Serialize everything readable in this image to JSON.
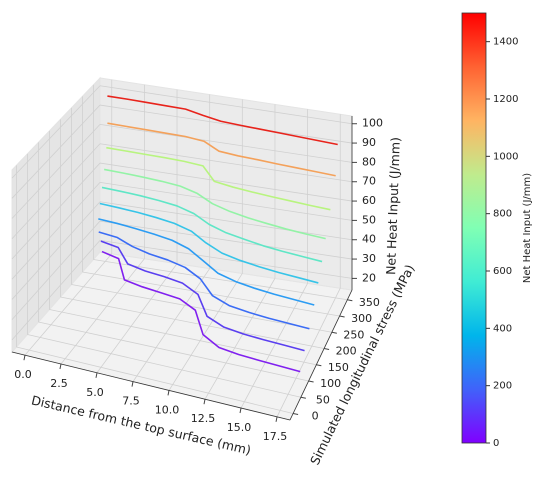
{
  "chart_data": {
    "type": "line3d",
    "x_label": "Distance from the top surface (mm)",
    "y_label": "Simulated longitudinal stress (MPa)",
    "z_label": "Net Heat Input (J/mm)",
    "x": [
      0,
      1.5,
      3,
      4.5,
      6,
      7.5,
      9,
      10.5,
      12,
      13.5,
      15,
      16.5,
      18
    ],
    "xlim": [
      -0.9,
      18.4
    ],
    "ylim": [
      -20,
      380
    ],
    "zlim": [
      14,
      104
    ],
    "xticks": [
      {
        "value": 0,
        "label": "0.0"
      },
      2.5,
      {
        "value": 5,
        "label": "5.0"
      },
      7.5,
      {
        "value": 10,
        "label": "10.0"
      },
      12.5,
      {
        "value": 15,
        "label": "15.0"
      },
      17.5
    ],
    "yticks": [
      0,
      50,
      100,
      150,
      200,
      250,
      300,
      350
    ],
    "zticks": [
      20,
      30,
      40,
      50,
      60,
      70,
      80,
      90,
      100
    ],
    "grid": true,
    "series": [
      {
        "z": 98,
        "color": "#e8231b",
        "values": [
          360,
          360,
          359,
          358,
          357,
          345,
          335,
          332,
          330,
          328,
          326,
          324,
          322
        ]
      },
      {
        "z": 84,
        "color": "#f4a15a",
        "values": [
          360,
          359,
          358,
          357,
          356,
          350,
          325,
          320,
          318,
          315,
          313,
          311,
          309
        ]
      },
      {
        "z": 72,
        "color": "#b8f47f",
        "values": [
          355,
          354,
          353,
          352,
          350,
          345,
          300,
          292,
          287,
          283,
          280,
          277,
          275
        ]
      },
      {
        "z": 62,
        "color": "#93f3a6",
        "values": [
          345,
          343,
          340,
          336,
          330,
          315,
          290,
          275,
          265,
          258,
          252,
          248,
          245
        ]
      },
      {
        "z": 54,
        "color": "#5fe6c6",
        "values": [
          335,
          332,
          328,
          322,
          314,
          298,
          272,
          255,
          245,
          236,
          230,
          226,
          222
        ]
      },
      {
        "z": 47,
        "color": "#36c4e8",
        "values": [
          325,
          321,
          316,
          309,
          300,
          284,
          255,
          232,
          220,
          212,
          206,
          202,
          198
        ]
      },
      {
        "z": 40,
        "color": "#2c9cf3",
        "values": [
          318,
          313,
          306,
          298,
          288,
          270,
          240,
          210,
          195,
          186,
          180,
          176,
          172
        ]
      },
      {
        "z": 33,
        "color": "#3b6cf5",
        "values": [
          320,
          312,
          290,
          275,
          266,
          252,
          225,
          180,
          160,
          152,
          147,
          144,
          141
        ]
      },
      {
        "z": 27,
        "color": "#5a3ff0",
        "values": [
          330,
          318,
          268,
          255,
          248,
          238,
          212,
          150,
          128,
          120,
          116,
          113,
          110
        ]
      },
      {
        "z": 21,
        "color": "#8020ef",
        "values": [
          335,
          320,
          252,
          240,
          232,
          224,
          198,
          128,
          100,
          92,
          88,
          85,
          82
        ]
      }
    ],
    "colorbar": {
      "label": "Net Heat Input (J/mm)",
      "lim": [
        0,
        1500
      ],
      "ticks": [
        0,
        200,
        400,
        600,
        800,
        1000,
        1200,
        1400
      ],
      "colors": [
        "#8000ff",
        "#4062fa",
        "#00b5eb",
        "#40ecd4",
        "#80ffb4",
        "#c0eb8d",
        "#ffb462",
        "#ff6232",
        "#ff0000"
      ]
    }
  }
}
